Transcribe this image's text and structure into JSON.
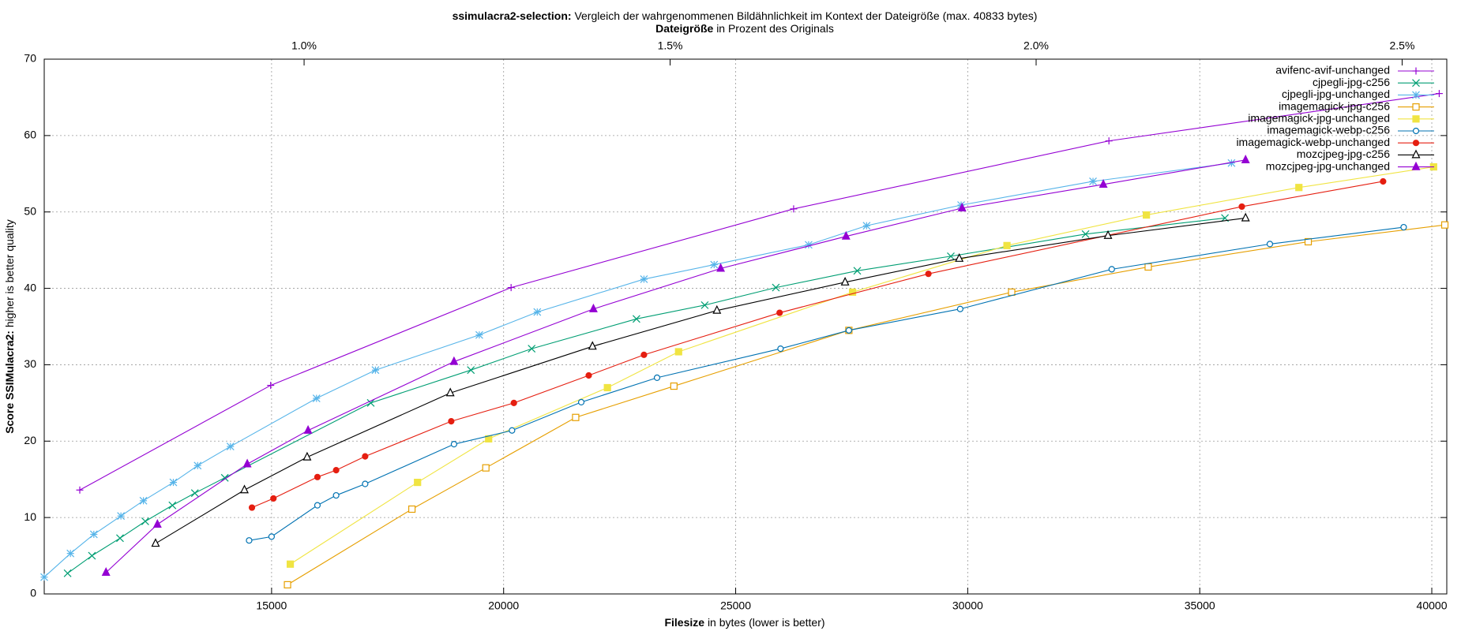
{
  "chart_data": {
    "type": "line",
    "title_bold": "ssimulacra2-selection:",
    "title": "Vergleich der wahrgenommenen Bildähnlichkeit im Kontext der Dateigröße (max. 40833 bytes)",
    "x2label_bold": "Dateigröße",
    "x2label": "in Prozent des Originals",
    "xlabel_bold": "Filesize",
    "xlabel": "in bytes (lower is better)",
    "ylabel_bold": "Score SSIMulacra2:",
    "ylabel": "higher is better quality",
    "xlim": [
      10101,
      40323
    ],
    "xticks": [
      15000,
      20000,
      25000,
      30000,
      35000,
      40000
    ],
    "x2lim": [
      0.645,
      2.561
    ],
    "x2ticks": [
      {
        "value": 1.0,
        "label": "1.0%"
      },
      {
        "value": 1.5,
        "label": "1.5%"
      },
      {
        "value": 2.0,
        "label": "2.0%"
      },
      {
        "value": 2.5,
        "label": "2.5%"
      }
    ],
    "ylim": [
      0,
      70
    ],
    "yticks": [
      0,
      10,
      20,
      30,
      40,
      50,
      60,
      70
    ],
    "grid": true,
    "legend": "top-right",
    "series": [
      {
        "name": "avifenc-avif-unchanged",
        "color": "#9400d3",
        "point": "plus",
        "x": [
          10867,
          14980,
          20161,
          26249,
          33043,
          40160
        ],
        "values": [
          13.6,
          27.3,
          40.1,
          50.4,
          59.3,
          65.5
        ]
      },
      {
        "name": "cjpegli-jpg-c256",
        "color": "#009e73",
        "point": "cross",
        "x": [
          10605,
          11129,
          11734,
          12278,
          12863,
          13347,
          13992,
          17137,
          19294,
          20604,
          22862,
          24334,
          25866,
          27620,
          29636,
          32539,
          35543
        ],
        "values": [
          2.7,
          5.0,
          7.3,
          9.5,
          11.6,
          13.2,
          15.2,
          25.0,
          29.3,
          32.1,
          36.0,
          37.8,
          40.1,
          42.3,
          44.2,
          47.1,
          49.2
        ]
      },
      {
        "name": "cjpegli-jpg-unchanged",
        "color": "#56b4e9",
        "point": "star",
        "x": [
          10101,
          10666,
          11170,
          11754,
          12238,
          12883,
          13407,
          14113,
          15968,
          17238,
          19476,
          20725,
          23024,
          24536,
          26572,
          27822,
          29858,
          32700,
          35684
        ],
        "values": [
          2.2,
          5.3,
          7.8,
          10.2,
          12.2,
          14.6,
          16.8,
          19.3,
          25.6,
          29.3,
          33.9,
          36.9,
          41.2,
          43.1,
          45.7,
          48.2,
          50.9,
          54.0,
          56.4
        ]
      },
      {
        "name": "imagemagick-jpg-c256",
        "color": "#e69f00",
        "point": "box",
        "x": [
          15343,
          18024,
          19617,
          21552,
          23669,
          27439,
          30947,
          33890,
          37337,
          40281
        ],
        "values": [
          1.2,
          11.1,
          16.5,
          23.1,
          27.2,
          34.5,
          39.5,
          42.8,
          46.1,
          48.3
        ]
      },
      {
        "name": "imagemagick-jpg-unchanged",
        "color": "#f0e442",
        "point": "box-filled",
        "x": [
          15403,
          18145,
          19677,
          22237,
          23770,
          27519,
          30846,
          33850,
          37136,
          40039
        ],
        "values": [
          3.9,
          14.6,
          20.3,
          27.0,
          31.7,
          39.5,
          45.6,
          49.6,
          53.2,
          55.9
        ]
      },
      {
        "name": "imagemagick-webp-c256",
        "color": "#0072b2",
        "point": "circle",
        "x": [
          14516,
          15000,
          15988,
          16391,
          17016,
          18931,
          20181,
          21673,
          23306,
          25967,
          27439,
          29838,
          33104,
          36511,
          39394
        ],
        "values": [
          7.0,
          7.5,
          11.6,
          12.9,
          14.4,
          19.6,
          21.4,
          25.1,
          28.3,
          32.1,
          34.5,
          37.3,
          42.5,
          45.8,
          48.0
        ]
      },
      {
        "name": "imagemagick-webp-unchanged",
        "color": "#e51e10",
        "point": "circle-filled",
        "x": [
          14577,
          15040,
          15988,
          16391,
          17016,
          18871,
          20221,
          21834,
          23024,
          25947,
          29153,
          35907,
          38951
        ],
        "values": [
          11.3,
          12.5,
          15.3,
          16.2,
          18.0,
          22.6,
          25.0,
          28.6,
          31.3,
          36.8,
          41.9,
          50.7,
          54.0
        ]
      },
      {
        "name": "mozcjpeg-jpg-c256",
        "color": "#000000",
        "point": "triangle",
        "x": [
          12500,
          14415,
          15766,
          18851,
          21915,
          24596,
          27358,
          29818,
          33023,
          35987
        ],
        "values": [
          6.6,
          13.6,
          17.9,
          26.3,
          32.4,
          37.1,
          40.8,
          43.9,
          46.9,
          49.2
        ]
      },
      {
        "name": "mozcjpeg-jpg-unchanged",
        "color": "#9400d3",
        "point": "triangle-filled",
        "x": [
          11432,
          12540,
          14476,
          15786,
          18931,
          21935,
          24677,
          27378,
          29878,
          32922,
          35987
        ],
        "values": [
          2.8,
          9.1,
          17.0,
          21.4,
          30.4,
          37.3,
          42.6,
          46.8,
          50.5,
          53.6,
          56.8
        ]
      }
    ]
  }
}
